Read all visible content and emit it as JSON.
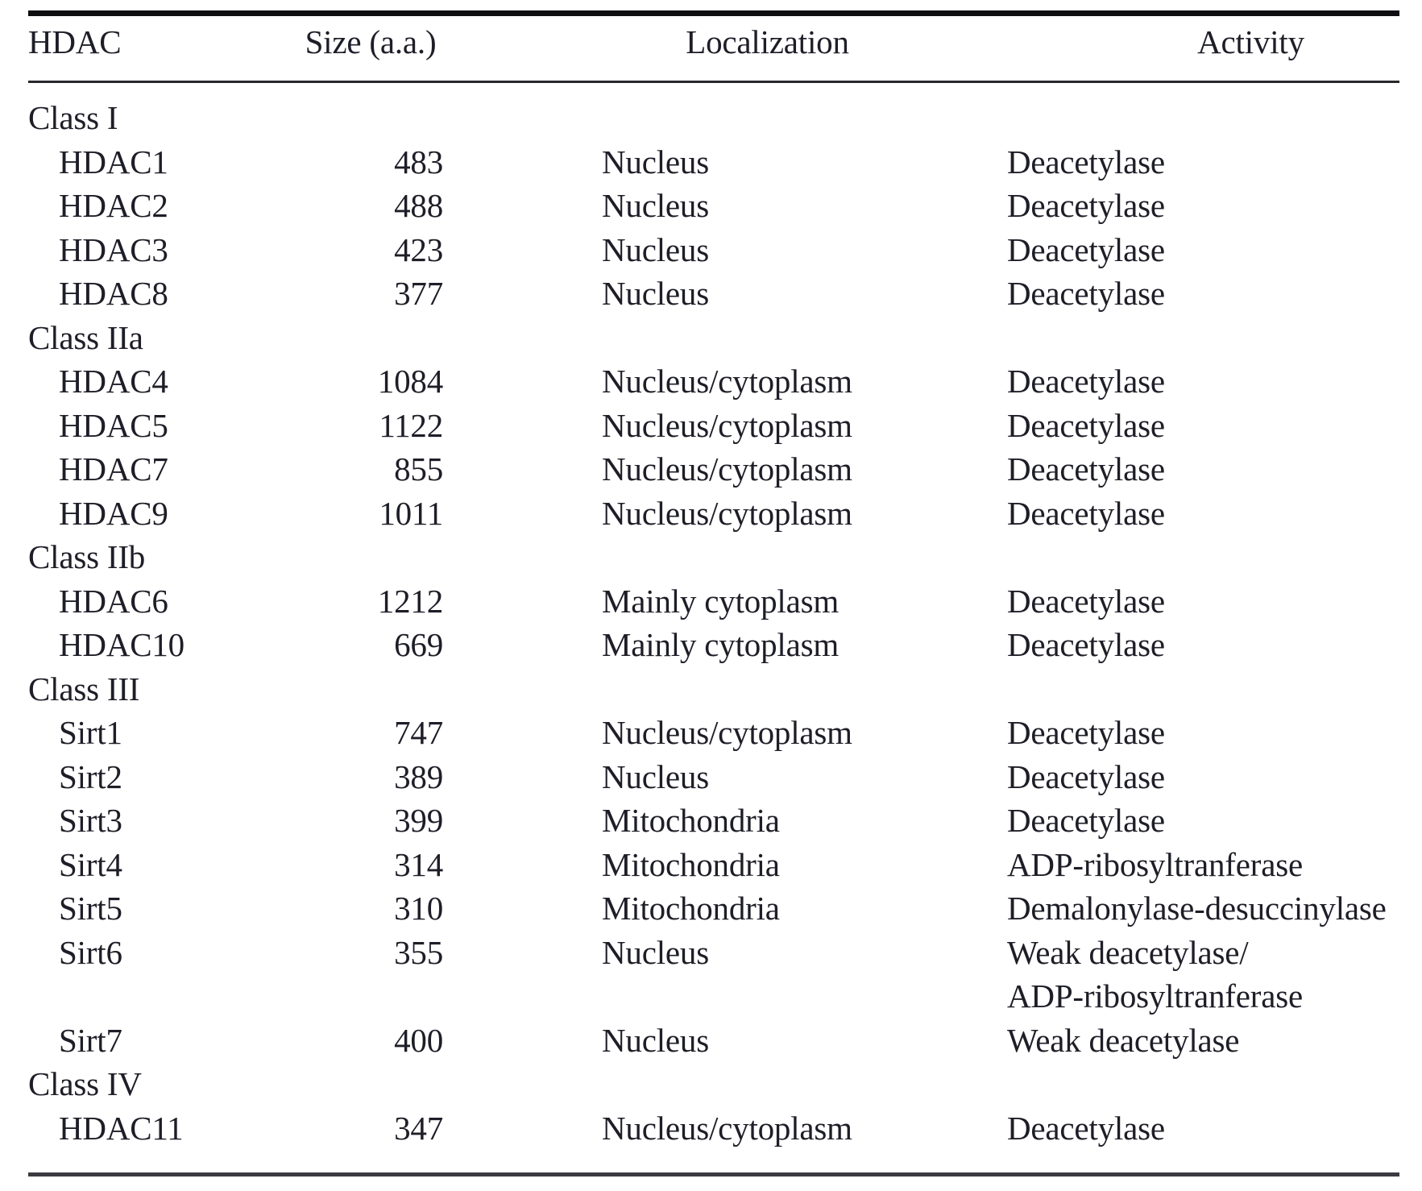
{
  "table": {
    "headers": {
      "hdac": "HDAC",
      "size": "Size (a.a.)",
      "localization": "Localization",
      "activity": "Activity"
    },
    "rows": [
      {
        "type": "class",
        "hdac": "Class I"
      },
      {
        "type": "item",
        "hdac": "HDAC1",
        "size": "483",
        "localization": "Nucleus",
        "activity": "Deacetylase"
      },
      {
        "type": "item",
        "hdac": "HDAC2",
        "size": "488",
        "localization": "Nucleus",
        "activity": "Deacetylase"
      },
      {
        "type": "item",
        "hdac": "HDAC3",
        "size": "423",
        "localization": "Nucleus",
        "activity": "Deacetylase"
      },
      {
        "type": "item",
        "hdac": "HDAC8",
        "size": "377",
        "localization": "Nucleus",
        "activity": "Deacetylase"
      },
      {
        "type": "class",
        "hdac": "Class IIa"
      },
      {
        "type": "item",
        "hdac": "HDAC4",
        "size": "1084",
        "localization": "Nucleus/cytoplasm",
        "activity": "Deacetylase"
      },
      {
        "type": "item",
        "hdac": "HDAC5",
        "size": "1122",
        "localization": "Nucleus/cytoplasm",
        "activity": "Deacetylase"
      },
      {
        "type": "item",
        "hdac": "HDAC7",
        "size": "855",
        "localization": "Nucleus/cytoplasm",
        "activity": "Deacetylase"
      },
      {
        "type": "item",
        "hdac": "HDAC9",
        "size": "1011",
        "localization": "Nucleus/cytoplasm",
        "activity": "Deacetylase"
      },
      {
        "type": "class",
        "hdac": "Class IIb"
      },
      {
        "type": "item",
        "hdac": "HDAC6",
        "size": "1212",
        "localization": "Mainly cytoplasm",
        "activity": "Deacetylase"
      },
      {
        "type": "item",
        "hdac": "HDAC10",
        "size": "669",
        "localization": "Mainly cytoplasm",
        "activity": "Deacetylase"
      },
      {
        "type": "class",
        "hdac": "Class III"
      },
      {
        "type": "item",
        "hdac": "Sirt1",
        "size": "747",
        "localization": "Nucleus/cytoplasm",
        "activity": "Deacetylase"
      },
      {
        "type": "item",
        "hdac": "Sirt2",
        "size": "389",
        "localization": "Nucleus",
        "activity": "Deacetylase"
      },
      {
        "type": "item",
        "hdac": "Sirt3",
        "size": "399",
        "localization": "Mitochondria",
        "activity": "Deacetylase"
      },
      {
        "type": "item",
        "hdac": "Sirt4",
        "size": "314",
        "localization": "Mitochondria",
        "activity": "ADP-ribosyltranferase"
      },
      {
        "type": "item",
        "hdac": "Sirt5",
        "size": "310",
        "localization": "Mitochondria",
        "activity": "Demalonylase-desuccinylase"
      },
      {
        "type": "item",
        "hdac": "Sirt6",
        "size": "355",
        "localization": "Nucleus",
        "activity": "Weak deacetylase/",
        "activity2": "ADP-ribosyltranferase"
      },
      {
        "type": "item",
        "hdac": "Sirt7",
        "size": "400",
        "localization": "Nucleus",
        "activity": "Weak deacetylase"
      },
      {
        "type": "class",
        "hdac": "Class IV"
      },
      {
        "type": "item",
        "hdac": "HDAC11",
        "size": "347",
        "localization": "Nucleus/cytoplasm",
        "activity": "Deacetylase"
      }
    ]
  }
}
